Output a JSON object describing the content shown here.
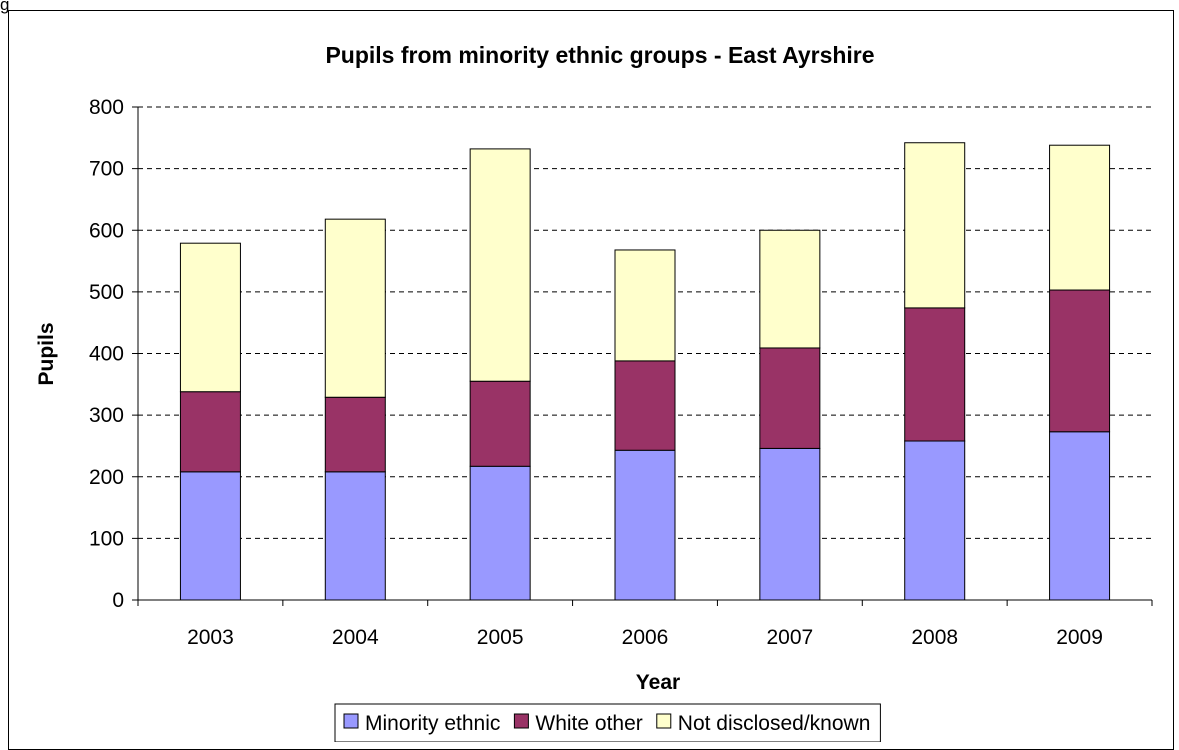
{
  "page": {
    "corner_label": "g"
  },
  "chart_data": {
    "type": "bar",
    "stacked": true,
    "title": "Pupils from minority ethnic groups - East Ayrshire",
    "xlabel": "Year",
    "ylabel": "Pupils",
    "ylim": [
      0,
      800
    ],
    "yticks": [
      0,
      100,
      200,
      300,
      400,
      500,
      600,
      700,
      800
    ],
    "grid": "horizontal dashed",
    "legend_position": "bottom",
    "categories": [
      "2003",
      "2004",
      "2005",
      "2006",
      "2007",
      "2008",
      "2009"
    ],
    "series": [
      {
        "name": "Minority ethnic",
        "color": "#9999ff",
        "values": [
          208,
          208,
          217,
          243,
          246,
          258,
          273
        ]
      },
      {
        "name": "White other",
        "color": "#993366",
        "values": [
          130,
          121,
          138,
          145,
          163,
          216,
          230
        ]
      },
      {
        "name": "Not disclosed/known",
        "color": "#ffffcc",
        "values": [
          241,
          289,
          377,
          180,
          191,
          268,
          235
        ]
      }
    ]
  }
}
